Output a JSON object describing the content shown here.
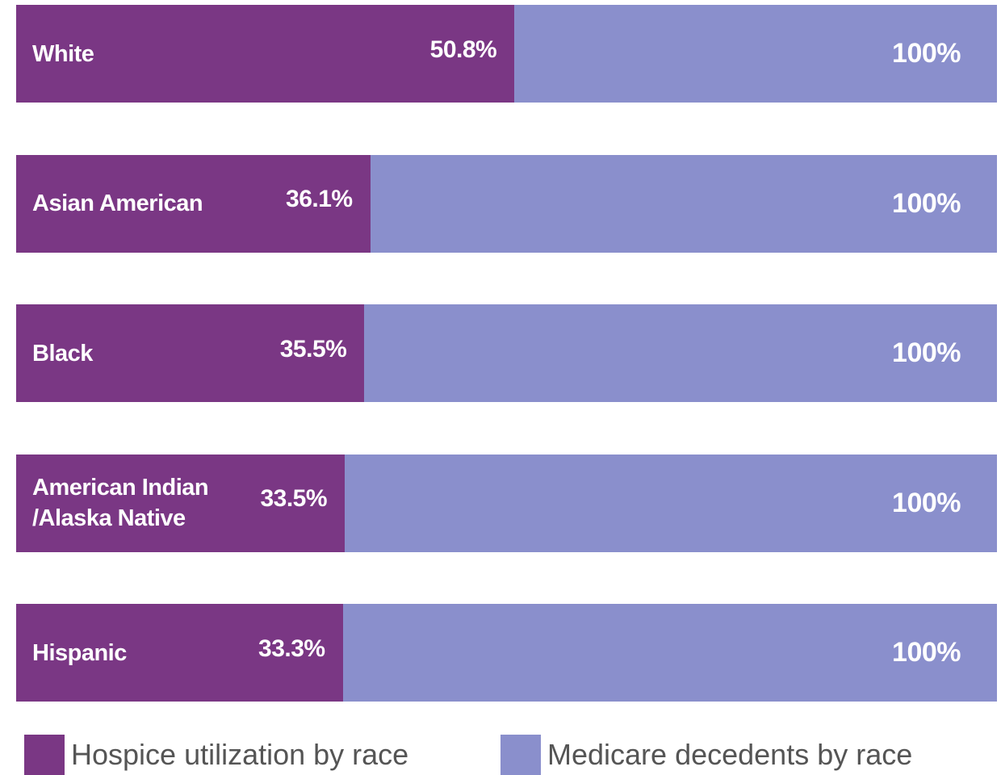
{
  "chart_data": {
    "type": "overlap-bar",
    "categories": [
      "White",
      "Asian American",
      "Black",
      "American Indian /Alaska Native",
      "Hispanic"
    ],
    "series": [
      {
        "name": "Hospice utilization by race",
        "color": "#7a3784",
        "values": [
          50.8,
          36.1,
          35.5,
          33.5,
          33.3
        ],
        "value_labels": [
          "50.8%",
          "36.1%",
          "35.5%",
          "33.5%",
          "33.3%"
        ]
      },
      {
        "name": "Medicare decedents by race",
        "color": "#8a8fcc",
        "values": [
          100,
          100,
          100,
          100,
          100
        ],
        "value_labels": [
          "100%",
          "100%",
          "100%",
          "100%",
          "100%"
        ]
      }
    ],
    "xlim": [
      0,
      100
    ]
  }
}
